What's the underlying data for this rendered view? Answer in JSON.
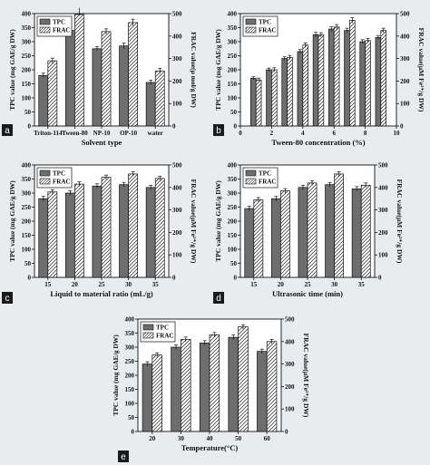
{
  "colors": {
    "tpc_fill": "#6e6e6e",
    "frac_fill": "#ffffff",
    "background": "#e8ecef",
    "label_box": "#1a1a1a"
  },
  "chart_data": [
    {
      "panel": "a",
      "type": "bar",
      "categories": [
        "Triton-114",
        "Tween-80",
        "NP-10",
        "OP-10",
        "water"
      ],
      "xlabel": "Solvent type",
      "ylabel_left": "TPC value (mg GAE/g DW)",
      "ylabel_right": "FRAC value(μ mol/g DW)",
      "ylim_left": [
        0,
        400
      ],
      "ylim_right": [
        0,
        500
      ],
      "yticks_left": [
        0,
        50,
        100,
        150,
        200,
        250,
        300,
        350,
        400
      ],
      "yticks_right": [
        0,
        100,
        200,
        300,
        400,
        500
      ],
      "legend": [
        "TPC",
        "FRAC"
      ],
      "legend_position": "top-left",
      "series": [
        {
          "name": "TPC",
          "axis": "left",
          "values": [
            180,
            340,
            275,
            285,
            155
          ],
          "errors": [
            8,
            10,
            8,
            10,
            8
          ]
        },
        {
          "name": "FRAC",
          "axis": "right",
          "values": [
            290,
            540,
            420,
            460,
            245
          ],
          "errors": [
            12,
            15,
            12,
            15,
            12
          ]
        }
      ]
    },
    {
      "panel": "b",
      "type": "bar",
      "x": [
        1,
        2,
        3,
        4,
        5,
        6,
        7,
        8,
        9
      ],
      "xticks": [
        0,
        2,
        4,
        6,
        8,
        10
      ],
      "xlabel": "Tween-80 concentration (%)",
      "ylabel_left": "TPC value (mg GAE/g DW)",
      "ylabel_right": "FRAC value(μM Fe²⁺/g DW)",
      "xlim": [
        0,
        10
      ],
      "ylim_left": [
        0,
        400
      ],
      "ylim_right": [
        0,
        500
      ],
      "yticks_left": [
        0,
        50,
        100,
        150,
        200,
        250,
        300,
        350,
        400
      ],
      "yticks_right": [
        0,
        100,
        200,
        300,
        400,
        500
      ],
      "legend": [
        "TPC",
        "FRAC"
      ],
      "legend_position": "top-left",
      "series": [
        {
          "name": "TPC",
          "axis": "left",
          "values": [
            170,
            200,
            240,
            265,
            325,
            345,
            340,
            300,
            315
          ],
          "errors": [
            5,
            6,
            6,
            7,
            8,
            8,
            8,
            7,
            7
          ]
        },
        {
          "name": "FRAC",
          "axis": "right",
          "values": [
            205,
            250,
            305,
            360,
            405,
            440,
            470,
            380,
            425
          ],
          "errors": [
            8,
            9,
            9,
            10,
            10,
            11,
            12,
            10,
            10
          ]
        }
      ]
    },
    {
      "panel": "c",
      "type": "bar",
      "categories": [
        "15",
        "20",
        "25",
        "30",
        "35"
      ],
      "xlabel": "Liquid to material ratio (mL/g)",
      "ylabel_left": "TPC value (mg GAE/g DW)",
      "ylabel_right": "FRAC value(μM Fe²⁺/g DW)",
      "ylim_left": [
        0,
        400
      ],
      "ylim_right": [
        0,
        500
      ],
      "yticks_left": [
        0,
        50,
        100,
        150,
        200,
        250,
        300,
        350,
        400
      ],
      "yticks_right": [
        0,
        100,
        200,
        300,
        400,
        500
      ],
      "legend": [
        "TPC",
        "FRAC"
      ],
      "legend_position": "top-left",
      "series": [
        {
          "name": "TPC",
          "axis": "left",
          "values": [
            280,
            300,
            325,
            330,
            320
          ],
          "errors": [
            8,
            8,
            8,
            8,
            8
          ]
        },
        {
          "name": "FRAC",
          "axis": "right",
          "values": [
            380,
            415,
            445,
            460,
            440
          ],
          "errors": [
            10,
            10,
            10,
            10,
            10
          ]
        }
      ]
    },
    {
      "panel": "d",
      "type": "bar",
      "categories": [
        "15",
        "20",
        "25",
        "30",
        "35"
      ],
      "xlabel": "Ultrasonic time (min)",
      "ylabel_left": "TPC value (mg GAE/g DW)",
      "ylabel_right": "FRAC value(μM Fe²⁺/g DW)",
      "ylim_left": [
        0,
        400
      ],
      "ylim_right": [
        0,
        500
      ],
      "yticks_left": [
        0,
        50,
        100,
        150,
        200,
        250,
        300,
        350,
        400
      ],
      "yticks_right": [
        0,
        100,
        200,
        300,
        400,
        500
      ],
      "legend": [
        "TPC",
        "FRAC"
      ],
      "legend_position": "top-left",
      "series": [
        {
          "name": "TPC",
          "axis": "left",
          "values": [
            245,
            280,
            320,
            330,
            315
          ],
          "errors": [
            8,
            8,
            8,
            8,
            8
          ]
        },
        {
          "name": "FRAC",
          "axis": "right",
          "values": [
            345,
            385,
            420,
            460,
            410
          ],
          "errors": [
            10,
            10,
            10,
            10,
            10
          ]
        }
      ]
    },
    {
      "panel": "e",
      "type": "bar",
      "categories": [
        "20",
        "30",
        "40",
        "50",
        "60"
      ],
      "xlabel": "Temperature(°C)",
      "ylabel_left": "TPC value (mg GAE/g DW)",
      "ylabel_right": "FRAC value(μM Fe²⁺/g DW)",
      "ylim_left": [
        0,
        400
      ],
      "ylim_right": [
        0,
        500
      ],
      "yticks_left": [
        0,
        50,
        100,
        150,
        200,
        250,
        300,
        350,
        400
      ],
      "yticks_right": [
        0,
        100,
        200,
        300,
        400,
        500
      ],
      "legend": [
        "TPC",
        "FRAC"
      ],
      "legend_position": "top-left",
      "series": [
        {
          "name": "TPC",
          "axis": "left",
          "values": [
            240,
            300,
            315,
            335,
            285
          ],
          "errors": [
            8,
            8,
            8,
            8,
            8
          ]
        },
        {
          "name": "FRAC",
          "axis": "right",
          "values": [
            340,
            410,
            430,
            465,
            400
          ],
          "errors": [
            10,
            10,
            10,
            10,
            10
          ]
        }
      ]
    }
  ]
}
